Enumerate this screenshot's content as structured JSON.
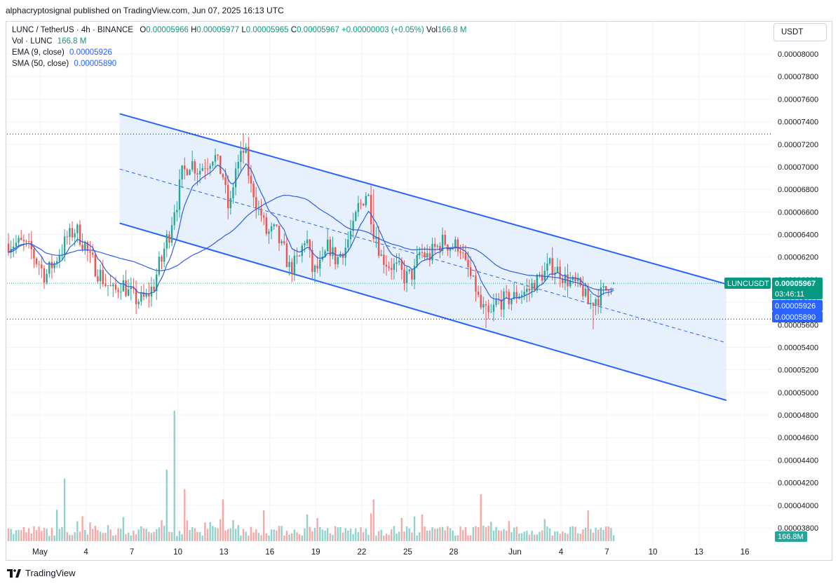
{
  "header": {
    "published": "alphacryptosignal published on TradingView.com, Jun 07, 2025 16:13 UTC"
  },
  "legend": {
    "symbol": "LUNC / TetherUS · 4h · BINANCE",
    "o_label": "O",
    "o": "0.00005966",
    "h_label": "H",
    "h": "0.00005977",
    "l_label": "L",
    "l": "0.00005965",
    "c_label": "C",
    "c": "0.00005967",
    "change": "+0.00000003 (+0.05%)",
    "vol_label": "Vol",
    "vol": "166.8 M",
    "vol_line_label": "Vol · LUNC",
    "vol_line_value": "166.8 M",
    "ema_label": "EMA (9, close)",
    "ema_value": "0.00005926",
    "sma_label": "SMA (50, close)",
    "sma_value": "0.00005890"
  },
  "currency": "USDT",
  "price_tags": {
    "symbol": "LUNCUSDT",
    "last": "0.00005967",
    "countdown": "03:46:11",
    "ema": "0.00005926",
    "sma": "0.00005890",
    "volume": "166.8M"
  },
  "colors": {
    "up": "#26a69a",
    "down": "#ef5350",
    "channel": "#2962ff",
    "channel_fill": "#e3edfd",
    "ma_line": "#2f5fe0",
    "vol_up": "#92d2cc",
    "vol_down": "#f7a9a7"
  },
  "footer": {
    "brand": "TradingView",
    "logo_icon": "tradingview-logo-icon"
  },
  "chart_data": {
    "type": "candlestick",
    "title": "LUNC / TetherUS · 4h · BINANCE",
    "y_axis": {
      "ticks": [
        "0.00008000",
        "0.00007800",
        "0.00007600",
        "0.00007400",
        "0.00007200",
        "0.00007000",
        "0.00006800",
        "0.00006600",
        "0.00006400",
        "0.00006200",
        "0.00006000",
        "0.00005800",
        "0.00005600",
        "0.00005400",
        "0.00005200",
        "0.00005000",
        "0.00004800",
        "0.00004600",
        "0.00004400",
        "0.00004200",
        "0.00004000",
        "0.00003800"
      ],
      "range": [
        3.73e-05,
        8.06e-05
      ]
    },
    "x_axis": {
      "ticks": [
        "May",
        "4",
        "7",
        "10",
        "13",
        "16",
        "19",
        "22",
        "25",
        "28",
        "Jun",
        "4",
        "7",
        "10",
        "13",
        "16"
      ],
      "tick_days": [
        1,
        4,
        7,
        10,
        13,
        16,
        19,
        22,
        25,
        28,
        32,
        35,
        38,
        41,
        44,
        47
      ]
    },
    "horizontal_levels": [
      7.29e-05,
      5.65e-05
    ],
    "channel": {
      "upper": [
        [
          6.2,
          7.47e-05
        ],
        [
          45.8,
          5.96e-05
        ]
      ],
      "lower": [
        [
          6.2,
          6.5e-05
        ],
        [
          45.8,
          4.93e-05
        ]
      ],
      "mid_dashed": [
        [
          6.2,
          6.98e-05
        ],
        [
          45.8,
          5.44e-05
        ]
      ]
    },
    "anchor_points": [
      [
        0.0,
        6.32e-05
      ],
      [
        0.5,
        6.27e-05
      ],
      [
        1.0,
        6.16e-05
      ],
      [
        1.5,
        6.04e-05
      ],
      [
        2.0,
        6.13e-05
      ],
      [
        2.5,
        6.25e-05
      ],
      [
        3.0,
        6.38e-05
      ],
      [
        3.5,
        6.44e-05
      ],
      [
        4.0,
        6.33e-05
      ],
      [
        4.5,
        6.17e-05
      ],
      [
        5.0,
        6.06e-05
      ],
      [
        5.5,
        5.96e-05
      ],
      [
        6.0,
        5.89e-05
      ],
      [
        6.5,
        5.97e-05
      ],
      [
        7.0,
        5.88e-05
      ],
      [
        7.5,
        5.82e-05
      ],
      [
        8.0,
        5.83e-05
      ],
      [
        8.5,
        5.92e-05
      ],
      [
        9.0,
        6.14e-05
      ],
      [
        9.5,
        6.37e-05
      ],
      [
        10.0,
        6.65e-05
      ],
      [
        10.5,
        6.95e-05
      ],
      [
        11.0,
        7.04e-05
      ],
      [
        11.5,
        6.97e-05
      ],
      [
        12.0,
        7.03e-05
      ],
      [
        12.5,
        7.1e-05
      ],
      [
        13.0,
        6.96e-05
      ],
      [
        13.5,
        6.63e-05
      ],
      [
        14.0,
        7e-05
      ],
      [
        14.5,
        7.14e-05
      ],
      [
        15.0,
        6.8e-05
      ],
      [
        15.5,
        6.6e-05
      ],
      [
        16.0,
        6.41e-05
      ],
      [
        16.5,
        6.43e-05
      ],
      [
        17.0,
        6.27e-05
      ],
      [
        17.5,
        6.1e-05
      ],
      [
        18.0,
        6.17e-05
      ],
      [
        18.5,
        6.37e-05
      ],
      [
        19.0,
        6.07e-05
      ],
      [
        19.5,
        6.12e-05
      ],
      [
        20.0,
        6.29e-05
      ],
      [
        20.5,
        6.18e-05
      ],
      [
        21.0,
        6.27e-05
      ],
      [
        21.5,
        6.42e-05
      ],
      [
        22.0,
        6.65e-05
      ],
      [
        22.5,
        6.77e-05
      ],
      [
        23.0,
        6.42e-05
      ],
      [
        23.5,
        6.19e-05
      ],
      [
        24.0,
        6.13e-05
      ],
      [
        24.5,
        6.1e-05
      ],
      [
        25.0,
        6.02e-05
      ],
      [
        25.5,
        6.05e-05
      ],
      [
        26.0,
        6.24e-05
      ],
      [
        26.5,
        6.2e-05
      ],
      [
        27.0,
        6.28e-05
      ],
      [
        27.5,
        6.34e-05
      ],
      [
        28.0,
        6.29e-05
      ],
      [
        28.5,
        6.31e-05
      ],
      [
        29.0,
        6.11e-05
      ],
      [
        29.5,
        5.95e-05
      ],
      [
        30.0,
        5.74e-05
      ],
      [
        30.5,
        5.67e-05
      ],
      [
        31.0,
        5.8e-05
      ],
      [
        31.5,
        5.82e-05
      ],
      [
        32.0,
        5.84e-05
      ],
      [
        32.5,
        5.88e-05
      ],
      [
        33.0,
        5.9e-05
      ],
      [
        33.5,
        5.98e-05
      ],
      [
        34.0,
        6.05e-05
      ],
      [
        34.5,
        6.12e-05
      ],
      [
        35.0,
        6.08e-05
      ],
      [
        35.5,
        6e-05
      ],
      [
        36.0,
        5.96e-05
      ],
      [
        36.5,
        5.92e-05
      ],
      [
        37.0,
        5.78e-05
      ],
      [
        37.5,
        5.84e-05
      ],
      [
        38.0,
        5.89e-05
      ],
      [
        38.3,
        5.97e-05
      ],
      [
        38.6,
        5.97e-05
      ]
    ],
    "ema_9_last": 5.926e-05,
    "sma_50_last": 5.89e-05,
    "volume": {
      "unit": "M",
      "last": 166.8,
      "spikes": [
        [
          2.6,
          0.48
        ],
        [
          9.8,
          1.0
        ],
        [
          9.3,
          0.55
        ],
        [
          10.4,
          0.4
        ],
        [
          13.0,
          0.32
        ],
        [
          22.8,
          0.32
        ],
        [
          29.8,
          0.36
        ]
      ]
    }
  }
}
